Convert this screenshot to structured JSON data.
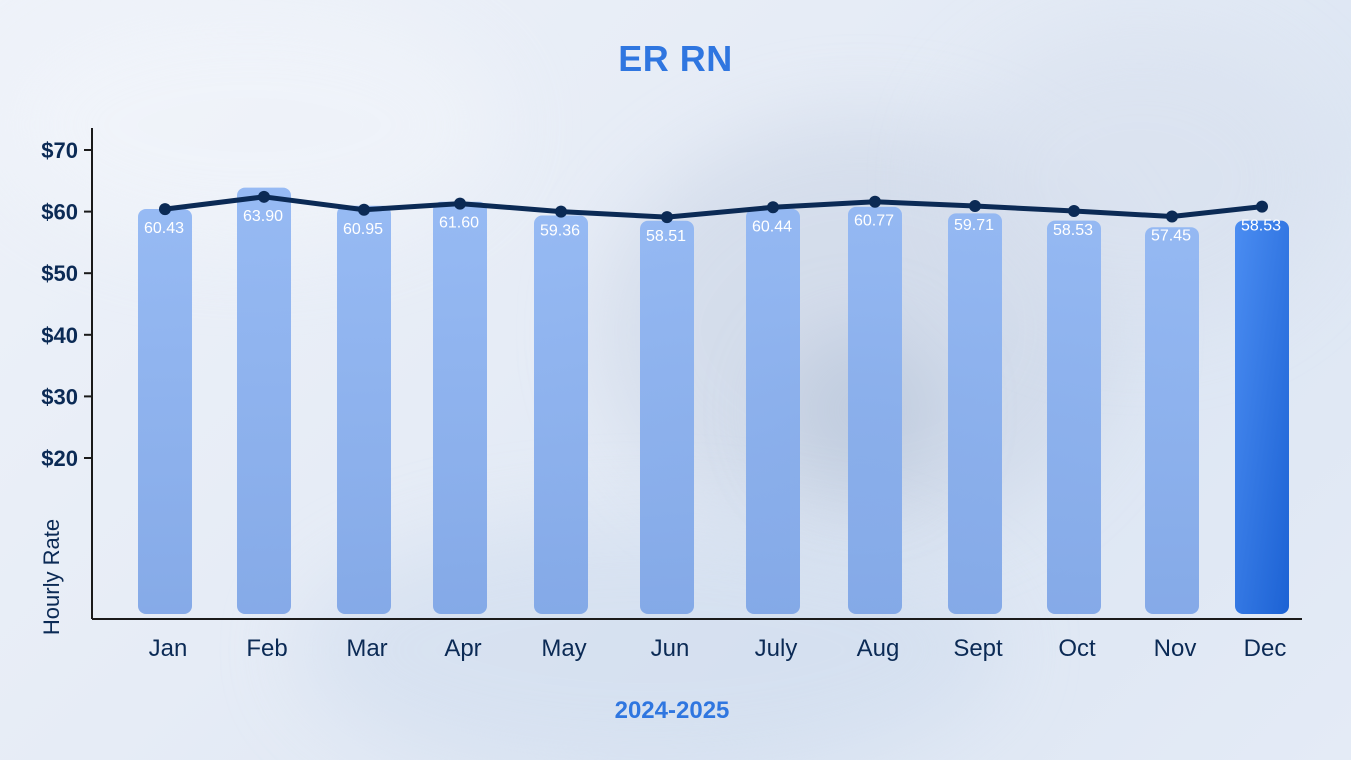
{
  "chart_data": {
    "type": "bar",
    "title": "ER RN",
    "xlabel": "2024-2025",
    "ylabel": "Hourly Rate",
    "categories": [
      "Jan",
      "Feb",
      "Mar",
      "Apr",
      "May",
      "Jun",
      "July",
      "Aug",
      "Sept",
      "Oct",
      "Nov",
      "Dec"
    ],
    "values": [
      60.43,
      63.9,
      60.95,
      61.6,
      59.36,
      58.51,
      60.44,
      60.77,
      59.71,
      58.53,
      57.45,
      58.53
    ],
    "data_labels": [
      "60.43",
      "63.90",
      "60.95",
      "61.60",
      "59.36",
      "58.51",
      "60.44",
      "60.77",
      "59.71",
      "58.53",
      "57.45",
      "58.53"
    ],
    "line_values": [
      60.4,
      62.4,
      60.3,
      61.3,
      60.0,
      59.1,
      60.7,
      61.6,
      60.9,
      60.1,
      59.2,
      60.8
    ],
    "y_ticks": [
      20,
      30,
      40,
      50,
      60,
      70
    ],
    "y_tick_labels": [
      "$20",
      "$30",
      "$40",
      "$50",
      "$60",
      "$70"
    ],
    "ylim": [
      0,
      72
    ],
    "grid": false,
    "legend": "none",
    "highlight_index": 11,
    "colors": {
      "bar": "#86aef0",
      "bar_highlight_top": "#4b8df2",
      "bar_highlight_bottom": "#1c62d4",
      "line": "#0b2a55",
      "axis": "#1a1a1a",
      "title": "#2f76e0",
      "text": "#0b2a55",
      "label": "#ffffff"
    }
  }
}
